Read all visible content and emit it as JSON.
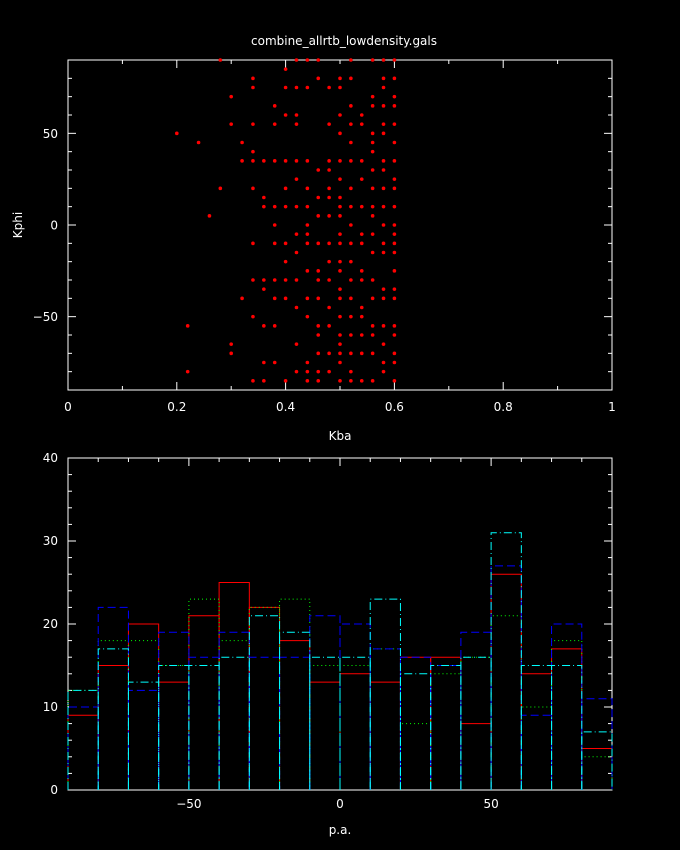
{
  "chart_data": [
    {
      "type": "scatter",
      "title": "combine_allrtb_lowdensity.gals",
      "xlabel": "Kba",
      "ylabel": "Kphi",
      "xlim": [
        0,
        1
      ],
      "ylim": [
        -90,
        90
      ],
      "xticks": [
        "0",
        "0.2",
        "0.4",
        "0.6",
        "0.8",
        "1"
      ],
      "yticks": [
        "−50",
        "0",
        "50"
      ],
      "color": "#ff0000",
      "points": [
        [
          0.2,
          50
        ],
        [
          0.24,
          45
        ],
        [
          0.22,
          -55
        ],
        [
          0.22,
          -80
        ],
        [
          0.26,
          5
        ],
        [
          0.28,
          20
        ],
        [
          0.28,
          90
        ],
        [
          0.3,
          70
        ],
        [
          0.3,
          55
        ],
        [
          0.3,
          -65
        ],
        [
          0.3,
          -70
        ],
        [
          0.32,
          45
        ],
        [
          0.32,
          35
        ],
        [
          0.32,
          -40
        ],
        [
          0.34,
          80
        ],
        [
          0.34,
          75
        ],
        [
          0.34,
          55
        ],
        [
          0.34,
          40
        ],
        [
          0.34,
          35
        ],
        [
          0.34,
          20
        ],
        [
          0.34,
          -10
        ],
        [
          0.34,
          -30
        ],
        [
          0.34,
          -50
        ],
        [
          0.34,
          -85
        ],
        [
          0.36,
          35
        ],
        [
          0.36,
          15
        ],
        [
          0.36,
          10
        ],
        [
          0.36,
          -30
        ],
        [
          0.36,
          -35
        ],
        [
          0.36,
          -55
        ],
        [
          0.36,
          -75
        ],
        [
          0.36,
          -85
        ],
        [
          0.38,
          65
        ],
        [
          0.38,
          55
        ],
        [
          0.38,
          35
        ],
        [
          0.38,
          10
        ],
        [
          0.38,
          0
        ],
        [
          0.38,
          -10
        ],
        [
          0.38,
          -30
        ],
        [
          0.38,
          -40
        ],
        [
          0.38,
          -55
        ],
        [
          0.38,
          -75
        ],
        [
          0.4,
          85
        ],
        [
          0.4,
          75
        ],
        [
          0.4,
          60
        ],
        [
          0.4,
          35
        ],
        [
          0.4,
          20
        ],
        [
          0.4,
          10
        ],
        [
          0.4,
          -10
        ],
        [
          0.4,
          -20
        ],
        [
          0.4,
          -30
        ],
        [
          0.4,
          -40
        ],
        [
          0.4,
          -85
        ],
        [
          0.42,
          90
        ],
        [
          0.42,
          75
        ],
        [
          0.42,
          60
        ],
        [
          0.42,
          55
        ],
        [
          0.42,
          35
        ],
        [
          0.42,
          25
        ],
        [
          0.42,
          10
        ],
        [
          0.42,
          -5
        ],
        [
          0.42,
          -15
        ],
        [
          0.42,
          -30
        ],
        [
          0.42,
          -45
        ],
        [
          0.42,
          -65
        ],
        [
          0.42,
          -80
        ],
        [
          0.44,
          90
        ],
        [
          0.44,
          75
        ],
        [
          0.44,
          35
        ],
        [
          0.44,
          20
        ],
        [
          0.44,
          10
        ],
        [
          0.44,
          0
        ],
        [
          0.44,
          -5
        ],
        [
          0.44,
          -10
        ],
        [
          0.44,
          -25
        ],
        [
          0.44,
          -40
        ],
        [
          0.44,
          -50
        ],
        [
          0.44,
          -75
        ],
        [
          0.44,
          -80
        ],
        [
          0.44,
          -85
        ],
        [
          0.46,
          90
        ],
        [
          0.46,
          80
        ],
        [
          0.46,
          30
        ],
        [
          0.46,
          15
        ],
        [
          0.46,
          5
        ],
        [
          0.46,
          -10
        ],
        [
          0.46,
          -25
        ],
        [
          0.46,
          -30
        ],
        [
          0.46,
          -40
        ],
        [
          0.46,
          -55
        ],
        [
          0.46,
          -60
        ],
        [
          0.46,
          -70
        ],
        [
          0.46,
          -80
        ],
        [
          0.46,
          -85
        ],
        [
          0.48,
          75
        ],
        [
          0.48,
          55
        ],
        [
          0.48,
          35
        ],
        [
          0.48,
          30
        ],
        [
          0.48,
          20
        ],
        [
          0.48,
          15
        ],
        [
          0.48,
          5
        ],
        [
          0.48,
          -10
        ],
        [
          0.48,
          -20
        ],
        [
          0.48,
          -30
        ],
        [
          0.48,
          -45
        ],
        [
          0.48,
          -55
        ],
        [
          0.48,
          -70
        ],
        [
          0.48,
          -80
        ],
        [
          0.5,
          80
        ],
        [
          0.5,
          75
        ],
        [
          0.5,
          60
        ],
        [
          0.5,
          50
        ],
        [
          0.5,
          35
        ],
        [
          0.5,
          25
        ],
        [
          0.5,
          15
        ],
        [
          0.5,
          10
        ],
        [
          0.5,
          5
        ],
        [
          0.5,
          -5
        ],
        [
          0.5,
          -10
        ],
        [
          0.5,
          -20
        ],
        [
          0.5,
          -25
        ],
        [
          0.5,
          -35
        ],
        [
          0.5,
          -40
        ],
        [
          0.5,
          -50
        ],
        [
          0.5,
          -60
        ],
        [
          0.5,
          -65
        ],
        [
          0.5,
          -70
        ],
        [
          0.5,
          -75
        ],
        [
          0.5,
          -85
        ],
        [
          0.52,
          90
        ],
        [
          0.52,
          80
        ],
        [
          0.52,
          65
        ],
        [
          0.52,
          55
        ],
        [
          0.52,
          45
        ],
        [
          0.52,
          35
        ],
        [
          0.52,
          20
        ],
        [
          0.52,
          10
        ],
        [
          0.52,
          0
        ],
        [
          0.52,
          -10
        ],
        [
          0.52,
          -20
        ],
        [
          0.52,
          -30
        ],
        [
          0.52,
          -40
        ],
        [
          0.52,
          -50
        ],
        [
          0.52,
          -60
        ],
        [
          0.52,
          -70
        ],
        [
          0.52,
          -80
        ],
        [
          0.52,
          -85
        ],
        [
          0.54,
          60
        ],
        [
          0.54,
          55
        ],
        [
          0.54,
          35
        ],
        [
          0.54,
          25
        ],
        [
          0.54,
          10
        ],
        [
          0.54,
          -5
        ],
        [
          0.54,
          -10
        ],
        [
          0.54,
          -25
        ],
        [
          0.54,
          -30
        ],
        [
          0.54,
          -45
        ],
        [
          0.54,
          -50
        ],
        [
          0.54,
          -60
        ],
        [
          0.54,
          -70
        ],
        [
          0.54,
          -85
        ],
        [
          0.56,
          90
        ],
        [
          0.56,
          70
        ],
        [
          0.56,
          65
        ],
        [
          0.56,
          50
        ],
        [
          0.56,
          45
        ],
        [
          0.56,
          40
        ],
        [
          0.56,
          30
        ],
        [
          0.56,
          20
        ],
        [
          0.56,
          10
        ],
        [
          0.56,
          5
        ],
        [
          0.56,
          -5
        ],
        [
          0.56,
          -15
        ],
        [
          0.56,
          -30
        ],
        [
          0.56,
          -40
        ],
        [
          0.56,
          -55
        ],
        [
          0.56,
          -60
        ],
        [
          0.56,
          -70
        ],
        [
          0.56,
          -85
        ],
        [
          0.58,
          90
        ],
        [
          0.58,
          80
        ],
        [
          0.58,
          75
        ],
        [
          0.58,
          65
        ],
        [
          0.58,
          55
        ],
        [
          0.58,
          50
        ],
        [
          0.58,
          35
        ],
        [
          0.58,
          30
        ],
        [
          0.58,
          20
        ],
        [
          0.58,
          10
        ],
        [
          0.58,
          0
        ],
        [
          0.58,
          -10
        ],
        [
          0.58,
          -15
        ],
        [
          0.58,
          -35
        ],
        [
          0.58,
          -40
        ],
        [
          0.58,
          -55
        ],
        [
          0.58,
          -65
        ],
        [
          0.58,
          -75
        ],
        [
          0.58,
          -80
        ],
        [
          0.6,
          90
        ],
        [
          0.6,
          80
        ],
        [
          0.6,
          70
        ],
        [
          0.6,
          65
        ],
        [
          0.6,
          55
        ],
        [
          0.6,
          45
        ],
        [
          0.6,
          35
        ],
        [
          0.6,
          25
        ],
        [
          0.6,
          20
        ],
        [
          0.6,
          10
        ],
        [
          0.6,
          0
        ],
        [
          0.6,
          -5
        ],
        [
          0.6,
          -10
        ],
        [
          0.6,
          -15
        ],
        [
          0.6,
          -25
        ],
        [
          0.6,
          -35
        ],
        [
          0.6,
          -40
        ],
        [
          0.6,
          -55
        ],
        [
          0.6,
          -60
        ],
        [
          0.6,
          -70
        ],
        [
          0.6,
          -75
        ],
        [
          0.6,
          -85
        ]
      ]
    },
    {
      "type": "bar",
      "subtype": "histogram-step",
      "xlabel": "p.a.",
      "ylabel": "",
      "xlim": [
        -90,
        90
      ],
      "ylim": [
        0,
        40
      ],
      "xticks": [
        "−50",
        "0",
        "50"
      ],
      "yticks": [
        "0",
        "10",
        "20",
        "30",
        "40"
      ],
      "bin_edges": [
        -90,
        -80,
        -70,
        -60,
        -50,
        -40,
        -30,
        -20,
        -10,
        0,
        10,
        20,
        30,
        40,
        50,
        60,
        70,
        80,
        90
      ],
      "series": [
        {
          "color": "#ff0000",
          "dash": "",
          "values": [
            9,
            15,
            20,
            13,
            21,
            25,
            22,
            18,
            13,
            14,
            13,
            16,
            16,
            8,
            26,
            14,
            17,
            5
          ]
        },
        {
          "color": "#00ff00",
          "dash": "1,3",
          "values": [
            12,
            18,
            18,
            15,
            23,
            18,
            22,
            23,
            15,
            15,
            17,
            8,
            14,
            16,
            21,
            10,
            18,
            4
          ]
        },
        {
          "color": "#0000ff",
          "dash": "8,4",
          "values": [
            10,
            22,
            12,
            19,
            16,
            19,
            16,
            16,
            21,
            20,
            17,
            16,
            15,
            19,
            27,
            9,
            20,
            11
          ]
        },
        {
          "color": "#00ffff",
          "dash": "8,3,1,3",
          "values": [
            12,
            17,
            13,
            15,
            15,
            16,
            21,
            19,
            16,
            16,
            23,
            14,
            15,
            16,
            31,
            15,
            15,
            7
          ]
        }
      ]
    }
  ]
}
